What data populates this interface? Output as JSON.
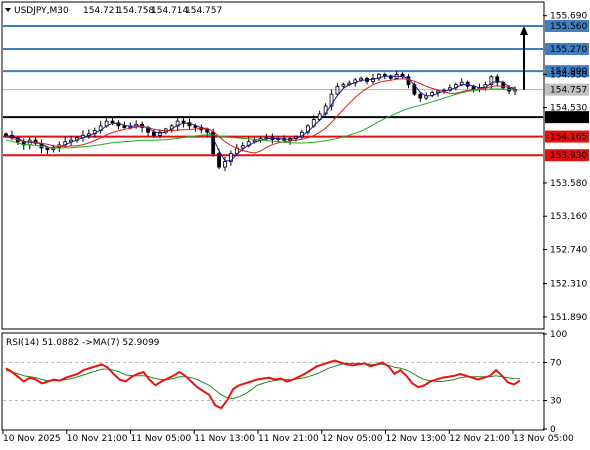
{
  "header": {
    "symbol_text": "USDJPY,M30",
    "open": "154.721",
    "high": "154.758",
    "low": "154.714",
    "close": "154.757"
  },
  "rsi_header": {
    "rsi_text": "RSI(14) 51.0882",
    "ma_text": "->MA(7) 52.9099"
  },
  "colors": {
    "candle": "#000000",
    "ma_fast": "#1a1aa6",
    "ma_mid": "#d42020",
    "ma_slow": "#22aa22",
    "resistance": "#3f7fbf",
    "support": "#e01010",
    "pivot": "#000000",
    "rsi": "#ee1111",
    "rsi_ma": "#228822"
  },
  "chart_data": [
    {
      "type": "candlestick",
      "title": "",
      "ylim": [
        151.75,
        155.85
      ],
      "y_ticks": [
        "155.690",
        "154.950",
        "154.530",
        "153.580",
        "153.160",
        "152.740",
        "152.310",
        "151.890"
      ],
      "x_ticks": [
        "10 Nov 2025",
        "10 Nov 21:00",
        "11 Nov 05:00",
        "11 Nov 13:00",
        "11 Nov 21:00",
        "12 Nov 05:00",
        "12 Nov 13:00",
        "12 Nov 21:00",
        "13 Nov 05:00"
      ],
      "current_price": 154.757,
      "levels": [
        {
          "label": "155.560",
          "value": 155.56,
          "kind": "resistance"
        },
        {
          "label": "155.270",
          "value": 155.27,
          "kind": "resistance"
        },
        {
          "label": "154.990",
          "value": 154.99,
          "kind": "resistance"
        },
        {
          "label": "154.410",
          "value": 154.41,
          "kind": "pivot"
        },
        {
          "label": "154.165",
          "value": 154.165,
          "kind": "support"
        },
        {
          "label": "153.930",
          "value": 153.93,
          "kind": "support"
        }
      ],
      "close_path": [
        154.18,
        154.15,
        154.1,
        154.06,
        154.12,
        154.08,
        154.02,
        154.0,
        154.03,
        154.06,
        154.1,
        154.12,
        154.15,
        154.18,
        154.2,
        154.24,
        154.3,
        154.36,
        154.34,
        154.3,
        154.28,
        154.3,
        154.32,
        154.28,
        154.22,
        154.18,
        154.22,
        154.26,
        154.3,
        154.36,
        154.34,
        154.3,
        154.28,
        154.25,
        154.22,
        153.95,
        153.78,
        153.85,
        153.95,
        154.02,
        154.05,
        154.1,
        154.12,
        154.14,
        154.15,
        154.13,
        154.14,
        154.12,
        154.14,
        154.16,
        154.22,
        154.3,
        154.38,
        154.45,
        154.55,
        154.7,
        154.8,
        154.82,
        154.84,
        154.88,
        154.9,
        154.86,
        154.9,
        154.95,
        154.93,
        154.9,
        154.95,
        154.92,
        154.82,
        154.7,
        154.65,
        154.68,
        154.72,
        154.74,
        154.75,
        154.78,
        154.82,
        154.85,
        154.8,
        154.76,
        154.78,
        154.82,
        154.92,
        154.85,
        154.78,
        154.74,
        154.757
      ],
      "arrow_target": 155.56
    },
    {
      "type": "line",
      "title": "",
      "ylim": [
        0,
        100
      ],
      "y_ticks": [
        "100",
        "70",
        "30",
        "0"
      ],
      "levels": [
        70,
        30
      ],
      "series": [
        {
          "name": "RSI(14)",
          "values": [
            64,
            60,
            55,
            50,
            54,
            52,
            48,
            50,
            52,
            51,
            54,
            56,
            58,
            62,
            64,
            66,
            68,
            65,
            58,
            52,
            50,
            55,
            58,
            60,
            52,
            46,
            50,
            53,
            56,
            60,
            56,
            50,
            44,
            40,
            36,
            25,
            22,
            30,
            42,
            46,
            48,
            50,
            52,
            53,
            54,
            52,
            53,
            50,
            52,
            55,
            58,
            62,
            66,
            68,
            70,
            72,
            70,
            68,
            67,
            68,
            69,
            66,
            68,
            70,
            66,
            58,
            62,
            56,
            48,
            44,
            46,
            50,
            52,
            54,
            55,
            56,
            58,
            56,
            54,
            52,
            54,
            56,
            62,
            56,
            49,
            47,
            51
          ]
        },
        {
          "name": "MA(7)",
          "values": [
            62,
            60,
            58,
            56,
            55,
            54,
            52,
            51,
            51,
            51,
            52,
            53,
            55,
            57,
            59,
            61,
            63,
            63,
            62,
            60,
            57,
            56,
            56,
            56,
            55,
            53,
            52,
            52,
            53,
            55,
            55,
            54,
            52,
            49,
            46,
            41,
            36,
            33,
            32,
            34,
            37,
            41,
            46,
            48,
            50,
            51,
            52,
            52,
            52,
            53,
            54,
            56,
            58,
            61,
            64,
            66,
            68,
            69,
            69,
            69,
            69,
            68,
            68,
            68,
            67,
            65,
            64,
            62,
            59,
            55,
            52,
            51,
            50,
            50,
            51,
            52,
            54,
            55,
            55,
            55,
            55,
            55,
            56,
            55,
            54,
            53,
            52.9
          ]
        }
      ]
    }
  ]
}
